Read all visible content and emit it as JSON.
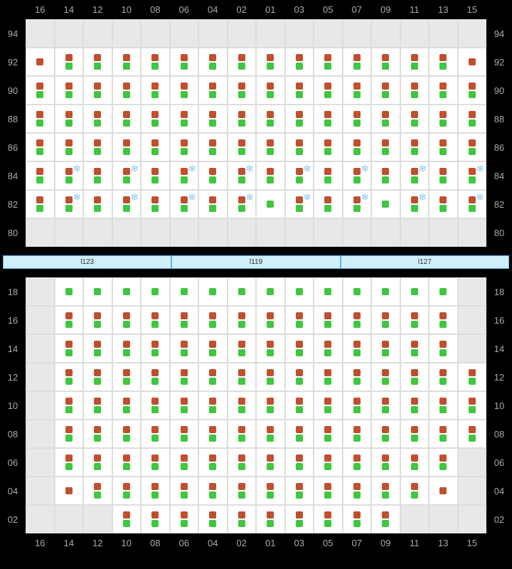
{
  "columns": [
    "16",
    "14",
    "12",
    "10",
    "08",
    "06",
    "04",
    "02",
    "01",
    "03",
    "05",
    "07",
    "09",
    "11",
    "13",
    "15"
  ],
  "racks": [
    "l123",
    "l119",
    "l127"
  ],
  "colors": {
    "orange": "#c14f2e",
    "green": "#3fc73f",
    "snow": "#8fc8f0",
    "cell_bg": "#ffffff",
    "empty_bg": "#e8e8e8",
    "grid_border": "#dddddd",
    "page_bg": "#000000",
    "label_color": "#aaaaaa",
    "rack_bg": "#d0eefc",
    "rack_border": "#5bb5e8"
  },
  "top": {
    "rows": [
      "94",
      "92",
      "90",
      "88",
      "86",
      "84",
      "82",
      "80"
    ],
    "cells": {
      "94": "EEEEEEEEEEEEEEEE",
      "92": "OBBBBBBBBBBBBBBO",
      "90": "BBBBBBBBBBBBBBBB",
      "88": "BBBBBBBBBBBBBBBB",
      "86": "BBBBBBBBBBBBBBBB",
      "84": "BSBSBSBSBSBSBSBS",
      "82": "BSBSBSBSGSBSGSBS",
      "80": "EEEEEEEEEEEEEEEE"
    }
  },
  "bottom": {
    "rows": [
      "18",
      "16",
      "14",
      "12",
      "10",
      "08",
      "06",
      "04",
      "02"
    ],
    "cells": {
      "18": "EGGGGGGGGGGGGGGE",
      "16": "EBBBBBBBBBBBBBBE",
      "14": "EBBBBBBBBBBBBBBE",
      "12": "EBBBBBBBBBBBBBBB",
      "10": "EBBBBBBBBBBBBBBB",
      "08": "EBBBBBBBBBBBBBBB",
      "06": "EBBBBBBBBBBBBBBE",
      "04": "EOBBBBBBBBBBBBOE",
      "02": "EEEBBBBBBBBBBEEE"
    }
  },
  "legend": {
    "E": "empty",
    "B": "both orange+green",
    "O": "orange only",
    "G": "green only",
    "S": "both + snowflake"
  }
}
